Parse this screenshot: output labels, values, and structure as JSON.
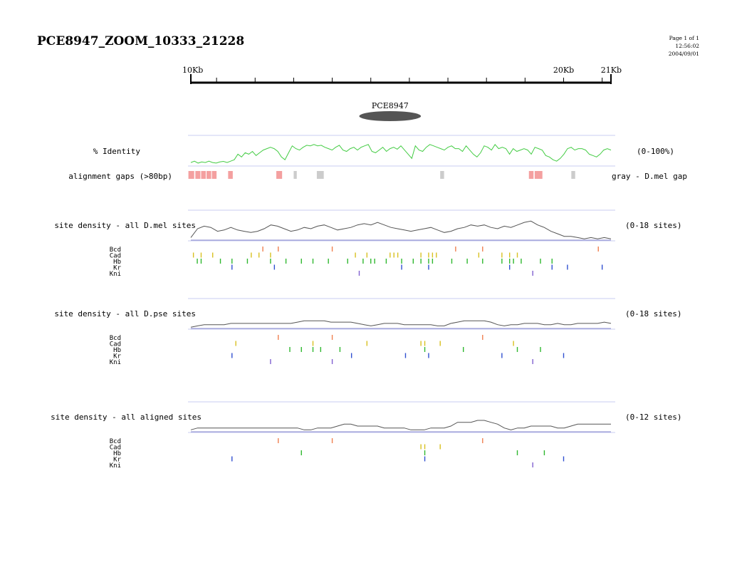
{
  "title": "PCE8947_ZOOM_10333_21228",
  "meta": {
    "page": "Page 1 of 1",
    "time": "12:56:02",
    "date": "2004/09/01"
  },
  "ruler": {
    "start_kb": 10.333,
    "end_kb": 21.228,
    "labels": [
      {
        "kb": 10.333,
        "text": "10Kb"
      },
      {
        "kb": 20.0,
        "text": "20Kb"
      },
      {
        "kb": 21.228,
        "text": "21Kb"
      }
    ],
    "minor_ticks_kb": [
      11,
      12,
      13,
      14,
      15,
      16,
      17,
      18,
      19,
      20,
      21
    ]
  },
  "element": {
    "name": "PCE8947",
    "start_kb": 14.7,
    "end_kb": 16.3,
    "color": "#555555"
  },
  "identity": {
    "label": "% Identity",
    "range": "(0-100%)",
    "color": "#44cc44",
    "values": [
      10,
      15,
      8,
      12,
      10,
      15,
      10,
      8,
      12,
      14,
      10,
      15,
      20,
      40,
      30,
      45,
      40,
      50,
      35,
      45,
      55,
      60,
      65,
      60,
      50,
      30,
      20,
      45,
      70,
      60,
      55,
      65,
      72,
      70,
      75,
      70,
      72,
      65,
      60,
      55,
      65,
      72,
      55,
      50,
      60,
      65,
      55,
      65,
      70,
      75,
      50,
      45,
      55,
      65,
      50,
      60,
      65,
      58,
      70,
      55,
      40,
      25,
      70,
      55,
      50,
      65,
      75,
      70,
      65,
      60,
      55,
      65,
      70,
      60,
      60,
      50,
      70,
      55,
      40,
      30,
      45,
      70,
      65,
      55,
      75,
      60,
      65,
      60,
      40,
      60,
      50,
      55,
      60,
      55,
      40,
      65,
      60,
      55,
      35,
      30,
      20,
      15,
      25,
      40,
      60,
      65,
      55,
      60,
      60,
      55,
      40,
      35,
      30,
      40,
      55,
      60,
      55
    ],
    "gaps_label": "alignment gaps (>80bp)",
    "gaps_note": "gray - D.mel gap",
    "gaps": [
      {
        "start_kb": 10.27,
        "end_kb": 10.42,
        "type": "pink"
      },
      {
        "start_kb": 10.45,
        "end_kb": 10.58,
        "type": "pink"
      },
      {
        "start_kb": 10.6,
        "end_kb": 10.72,
        "type": "pink"
      },
      {
        "start_kb": 10.74,
        "end_kb": 10.86,
        "type": "pink"
      },
      {
        "start_kb": 10.88,
        "end_kb": 11.0,
        "type": "pink"
      },
      {
        "start_kb": 11.3,
        "end_kb": 11.42,
        "type": "pink"
      },
      {
        "start_kb": 12.55,
        "end_kb": 12.7,
        "type": "pink"
      },
      {
        "start_kb": 13.0,
        "end_kb": 13.08,
        "type": "gray"
      },
      {
        "start_kb": 13.6,
        "end_kb": 13.78,
        "type": "gray"
      },
      {
        "start_kb": 16.8,
        "end_kb": 16.9,
        "type": "gray"
      },
      {
        "start_kb": 19.1,
        "end_kb": 19.22,
        "type": "pink"
      },
      {
        "start_kb": 19.25,
        "end_kb": 19.45,
        "type": "pink"
      },
      {
        "start_kb": 20.2,
        "end_kb": 20.3,
        "type": "gray"
      }
    ],
    "gap_colors": {
      "pink": "#f4a0a0",
      "gray": "#cccccc"
    }
  },
  "factor_colors": {
    "Bcd": "#f08050",
    "Cad": "#d8c020",
    "Hb": "#30b830",
    "Kr": "#3050d0",
    "Kni": "#8060d0"
  },
  "panels": [
    {
      "label": "site density - all D.mel sites",
      "range": "(0-18 sites)",
      "density": [
        2,
        9,
        11,
        10,
        7,
        8,
        10,
        8,
        7,
        6,
        7,
        9,
        12,
        11,
        9,
        7,
        8,
        10,
        9,
        11,
        12,
        10,
        8,
        9,
        10,
        12,
        13,
        12,
        14,
        12,
        10,
        9,
        8,
        7,
        8,
        9,
        10,
        8,
        6,
        7,
        9,
        10,
        12,
        11,
        12,
        10,
        9,
        11,
        10,
        12,
        14,
        15,
        12,
        10,
        7,
        5,
        3,
        3,
        2,
        1,
        2,
        1,
        2,
        1
      ],
      "sites": {
        "Bcd": [
          12.2,
          12.6,
          14.0,
          17.2,
          17.9,
          20.9
        ],
        "Cad": [
          10.4,
          10.6,
          10.9,
          11.9,
          12.1,
          12.4,
          14.6,
          14.9,
          15.5,
          15.6,
          15.7,
          16.3,
          16.5,
          16.6,
          16.7,
          17.8,
          18.4,
          18.6,
          18.8
        ],
        "Hb": [
          10.5,
          10.6,
          11.1,
          11.4,
          11.8,
          12.4,
          12.8,
          13.2,
          13.5,
          13.9,
          14.4,
          14.8,
          15.0,
          15.1,
          15.4,
          15.8,
          16.1,
          16.3,
          16.5,
          16.6,
          17.1,
          17.5,
          17.9,
          18.4,
          18.6,
          18.7,
          18.9,
          19.4,
          19.7
        ],
        "Kr": [
          11.4,
          12.5,
          15.8,
          16.5,
          18.6,
          19.7,
          20.1,
          21.0
        ],
        "Kni": [
          14.7,
          19.2
        ]
      }
    },
    {
      "label": "site density - all D.pse sites",
      "range": "(0-18 sites)",
      "density": [
        1,
        2,
        3,
        3,
        3,
        3,
        4,
        4,
        4,
        4,
        4,
        4,
        4,
        4,
        4,
        4,
        5,
        6,
        6,
        6,
        6,
        5,
        5,
        5,
        5,
        4,
        3,
        2,
        3,
        4,
        4,
        4,
        3,
        3,
        3,
        3,
        3,
        2,
        2,
        4,
        5,
        6,
        6,
        6,
        6,
        5,
        3,
        2,
        3,
        3,
        4,
        4,
        4,
        3,
        3,
        4,
        3,
        3,
        4,
        4,
        4,
        4,
        5,
        4
      ],
      "sites": {
        "Bcd": [
          12.6,
          14.0,
          17.9
        ],
        "Cad": [
          11.5,
          13.5,
          14.9,
          16.3,
          16.4,
          16.8,
          18.7
        ],
        "Hb": [
          12.9,
          13.2,
          13.5,
          13.7,
          14.2,
          16.4,
          17.4,
          18.8,
          19.4
        ],
        "Kr": [
          11.4,
          14.5,
          15.9,
          16.5,
          18.4,
          20.0
        ],
        "Kni": [
          12.4,
          14.0,
          19.2
        ]
      }
    },
    {
      "label": "site density - all aligned sites",
      "range": "(0-12 sites)",
      "density": [
        1,
        2,
        2,
        2,
        2,
        2,
        2,
        2,
        2,
        2,
        2,
        2,
        2,
        2,
        2,
        2,
        2,
        1,
        1,
        2,
        2,
        2,
        3,
        4,
        4,
        3,
        3,
        3,
        3,
        2,
        2,
        2,
        2,
        1,
        1,
        1,
        2,
        2,
        2,
        3,
        5,
        5,
        5,
        6,
        6,
        5,
        4,
        2,
        1,
        2,
        2,
        3,
        3,
        3,
        3,
        2,
        2,
        3,
        4,
        4,
        4,
        4,
        4,
        4
      ],
      "sites": {
        "Bcd": [
          12.6,
          14.0,
          17.9
        ],
        "Cad": [
          16.3,
          16.4,
          16.8
        ],
        "Hb": [
          13.2,
          16.4,
          18.8,
          19.5
        ],
        "Kr": [
          11.4,
          16.4,
          20.0
        ],
        "Kni": [
          19.2
        ]
      }
    }
  ]
}
